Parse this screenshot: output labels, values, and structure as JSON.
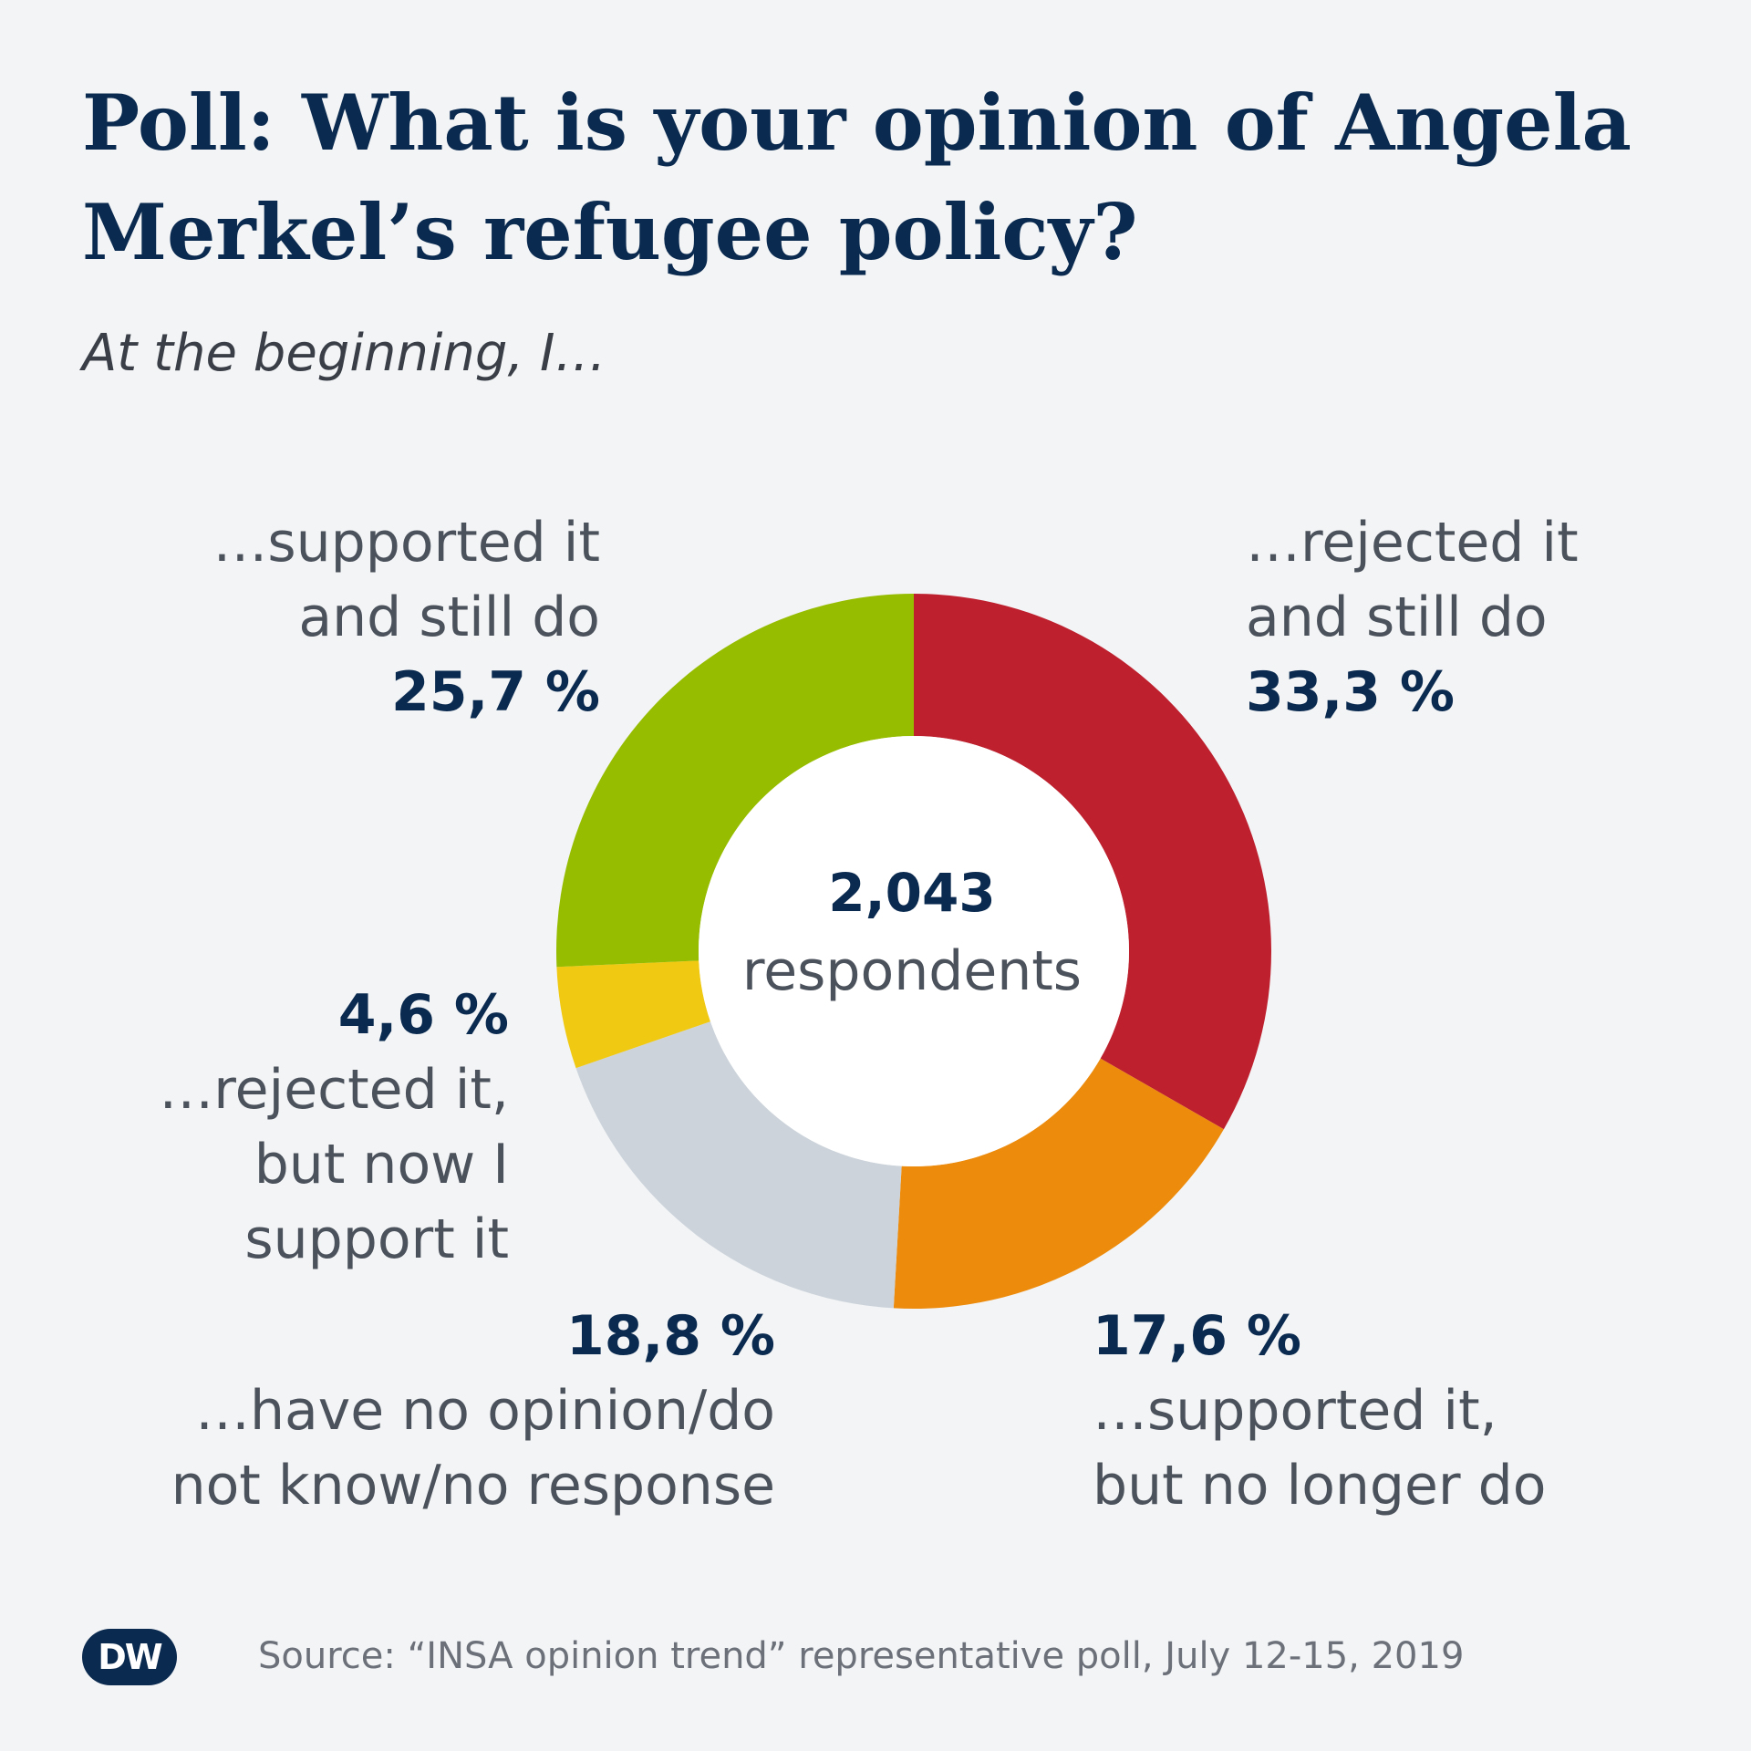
{
  "title": "Poll: What is your opinion of Angela Merkel’s refugee policy?",
  "subtitle": "At the beginning, I…",
  "center": {
    "count": "2,043",
    "label": "respondents"
  },
  "source": "Source: “INSA opinion trend” representative poll, July 12-15, 2019",
  "logo": "DW",
  "chart_data": {
    "type": "pie",
    "donut": true,
    "title": "Poll: What is your opinion of Angela Merkel’s refugee policy?",
    "subtitle": "At the beginning, I…",
    "total_respondents": 2043,
    "slices": [
      {
        "label": "…rejected it and still do",
        "value": 33.3,
        "display": "33,3 %",
        "color": "#be202e"
      },
      {
        "label": "…supported it, but no longer do",
        "value": 17.6,
        "display": "17,6 %",
        "color": "#ed8b0c"
      },
      {
        "label": "…have no opinion/do not know/no response",
        "value": 18.8,
        "display": "18,8 %",
        "color": "#ccd3da"
      },
      {
        "label": "…rejected it, but now I support it",
        "value": 4.6,
        "display": "4,6 %",
        "color": "#f0c912"
      },
      {
        "label": "…supported it and still do",
        "value": 25.7,
        "display": "25,7 %",
        "color": "#97bd00"
      }
    ],
    "label_lines": [
      [
        "…rejected it",
        "and still do"
      ],
      [
        "…supported it,",
        "but no longer do"
      ],
      [
        "…have no opinion/do",
        "not know/no response"
      ],
      [
        "…rejected it,",
        "but now I",
        "support it"
      ],
      [
        "…supported it",
        "and still do"
      ]
    ]
  }
}
